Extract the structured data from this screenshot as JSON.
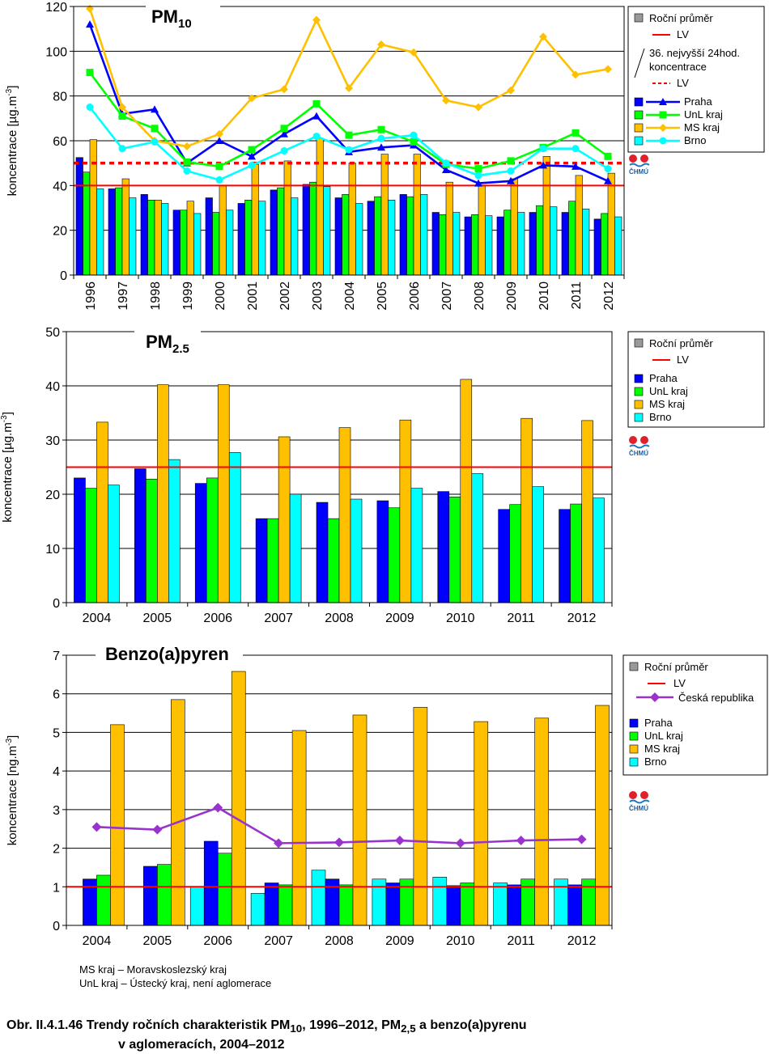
{
  "colors": {
    "praha": "#0000ff",
    "unl": "#00ff00",
    "ms": "#ffc000",
    "brno": "#00ffff",
    "lv": "#ff0000",
    "cr": "#9933cc",
    "annual_swatch": "#999999"
  },
  "legend": {
    "annual": "Roční průměr",
    "lv": "LV",
    "p36_line1": "36. nejvyšší 24hod.",
    "p36_line2": "koncentrace",
    "praha": "Praha",
    "unl": "UnL kraj",
    "ms": "MS kraj",
    "brno": "Brno",
    "cr": "Česká republika"
  },
  "logo_text": "ČHMÚ",
  "notes": {
    "ms": "MS kraj – Moravskoslezský kraj",
    "unl": "UnL kraj – Ústecký kraj, není aglomerace"
  },
  "caption": {
    "prefix": "Obr. II.4.1.46  Trendy ročních charakteristik PM",
    "sub1": "10",
    "mid1": ", 1996–2012, PM",
    "sub2": "2,5",
    "mid2": " a benzo(a)pyrenu",
    "line2": "v aglomeracích, 2004–2012"
  },
  "chart_data": [
    {
      "type": "bar",
      "title": "PM",
      "title_sub": "10",
      "ylabel_main": "koncentrace [µg.m",
      "ylabel_sup": "-3",
      "ylabel_end": "]",
      "ylim": [
        0,
        120
      ],
      "yticks": [
        0,
        20,
        40,
        60,
        80,
        100,
        120
      ],
      "categories": [
        "1996",
        "1997",
        "1998",
        "1999",
        "2000",
        "2001",
        "2002",
        "2003",
        "2004",
        "2005",
        "2006",
        "2007",
        "2008",
        "2009",
        "2010",
        "2011",
        "2012"
      ],
      "lv_annual": 40,
      "lv_36": 50,
      "bar_series": [
        {
          "name": "Praha",
          "values": [
            52.5,
            38.5,
            36,
            29,
            34.5,
            32,
            38,
            40.5,
            34.5,
            33,
            36,
            28,
            26,
            26,
            28,
            28,
            25
          ]
        },
        {
          "name": "UnL kraj",
          "values": [
            46,
            39,
            33.5,
            29,
            28,
            33.5,
            39,
            41.5,
            36,
            35,
            35,
            27,
            27,
            29,
            31,
            33,
            27.5
          ]
        },
        {
          "name": "MS kraj",
          "values": [
            60.5,
            43,
            33.5,
            33,
            40,
            49.5,
            51,
            61,
            50,
            54,
            54,
            41.5,
            40,
            43,
            53,
            44.5,
            45.5
          ]
        },
        {
          "name": "Brno",
          "values": [
            38.5,
            34.5,
            32,
            27.5,
            29,
            33,
            34.5,
            39.5,
            32,
            33.5,
            36,
            28,
            26.5,
            28,
            30.5,
            29.5,
            26
          ]
        }
      ],
      "line_series": [
        {
          "name": "Praha",
          "values": [
            112,
            72,
            74,
            50,
            60,
            53,
            63,
            71,
            55,
            57,
            58,
            47,
            41,
            42,
            49,
            48.5,
            42
          ]
        },
        {
          "name": "UnL kraj",
          "values": [
            90.5,
            71,
            65.5,
            50.5,
            48.5,
            56,
            65.5,
            76.5,
            62.5,
            65,
            59.5,
            49.5,
            47.5,
            51,
            57,
            63.5,
            53
          ]
        },
        {
          "name": "MS kraj",
          "values": [
            119,
            75,
            60,
            57.5,
            63,
            79,
            83,
            114,
            83.5,
            103,
            99.5,
            78,
            75,
            82.5,
            106.5,
            89.5,
            92
          ]
        },
        {
          "name": "Brno",
          "values": [
            75,
            56.5,
            59.5,
            46.5,
            42.5,
            49,
            55.5,
            62,
            56,
            61,
            62.5,
            50,
            44.5,
            46.5,
            56.5,
            56.5,
            47.5
          ]
        }
      ]
    },
    {
      "type": "bar",
      "title": "PM",
      "title_sub": "2.5",
      "ylabel_main": "koncentrace [µg.m",
      "ylabel_sup": "-3",
      "ylabel_end": "]",
      "ylim": [
        0,
        50
      ],
      "yticks": [
        0,
        10,
        20,
        30,
        40,
        50
      ],
      "categories": [
        "2004",
        "2005",
        "2006",
        "2007",
        "2008",
        "2009",
        "2010",
        "2011",
        "2012"
      ],
      "lv_annual": 25,
      "bar_series": [
        {
          "name": "Praha",
          "values": [
            23,
            24.7,
            22,
            15.5,
            18.5,
            18.8,
            20.5,
            17.2,
            17.2
          ]
        },
        {
          "name": "UnL kraj",
          "values": [
            21.1,
            22.8,
            23,
            15.5,
            15.5,
            17.5,
            19.5,
            18.1,
            18.2
          ]
        },
        {
          "name": "MS kraj",
          "values": [
            33.3,
            40.2,
            40.2,
            30.6,
            32.3,
            33.7,
            41.2,
            34,
            33.6
          ]
        },
        {
          "name": "Brno",
          "values": [
            21.7,
            26.4,
            27.7,
            20,
            19.1,
            21.1,
            23.8,
            21.4,
            19.3
          ]
        }
      ]
    },
    {
      "type": "bar",
      "title": "Benzo(a)pyren",
      "ylabel_main": "koncentrace [ng.m",
      "ylabel_sup": "-3",
      "ylabel_end": "]",
      "ylim": [
        0,
        7
      ],
      "yticks": [
        0,
        1,
        2,
        3,
        4,
        5,
        6,
        7
      ],
      "categories": [
        "2004",
        "2005",
        "2006",
        "2007",
        "2008",
        "2009",
        "2010",
        "2011",
        "2012"
      ],
      "lv_annual": 1,
      "bar_series": [
        {
          "name": "Brno",
          "values": [
            null,
            null,
            1.0,
            0.83,
            1.43,
            1.2,
            1.25,
            1.1,
            1.2
          ]
        },
        {
          "name": "Praha",
          "values": [
            1.2,
            1.53,
            2.18,
            1.1,
            1.2,
            1.1,
            1.03,
            1.05,
            1.05
          ]
        },
        {
          "name": "UnL kraj",
          "values": [
            1.3,
            1.58,
            1.87,
            1.05,
            1.05,
            1.2,
            1.1,
            1.2,
            1.2
          ]
        },
        {
          "name": "MS kraj",
          "values": [
            5.2,
            5.85,
            6.58,
            5.05,
            5.45,
            5.65,
            5.28,
            5.37,
            5.7
          ]
        }
      ],
      "line_series": [
        {
          "name": "Česká republika",
          "values": [
            2.55,
            2.48,
            3.05,
            2.13,
            2.15,
            2.2,
            2.13,
            2.2,
            2.23
          ]
        }
      ]
    }
  ]
}
